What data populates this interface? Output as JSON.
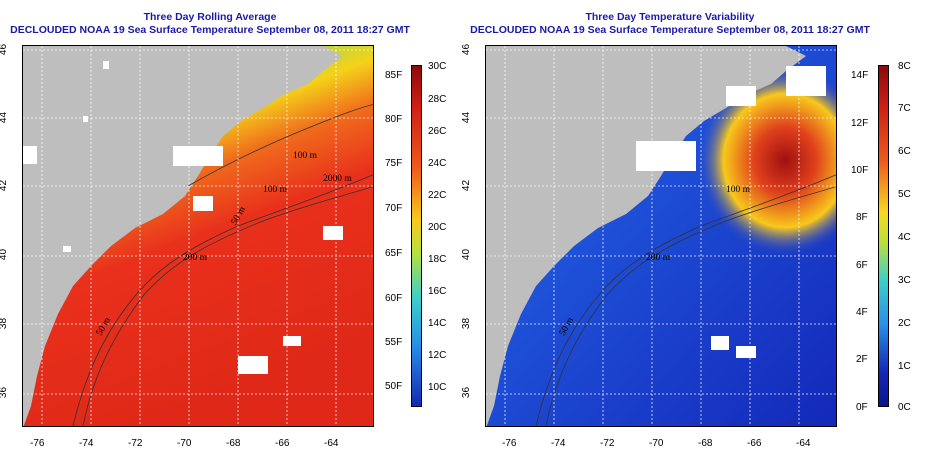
{
  "left_panel": {
    "title_line1": "Three Day Rolling Average",
    "title_line2": "DECLOUDED NOAA 19 Sea Surface Temperature September 08, 2011 18:27 GMT",
    "contour_labels": [
      "100 m",
      "100 m",
      "50 m",
      "2000 m",
      "200 m",
      "50 m"
    ],
    "colorbar_f_labels": [
      "85F",
      "80F",
      "75F",
      "70F",
      "65F",
      "60F",
      "55F",
      "50F"
    ],
    "colorbar_c_labels": [
      "30C",
      "28C",
      "26C",
      "24C",
      "22C",
      "20C",
      "18C",
      "16C",
      "14C",
      "12C",
      "10C"
    ],
    "colorbar_range_c": [
      9,
      30
    ]
  },
  "right_panel": {
    "title_line1": "Three Day Temperature Variability",
    "title_line2": "DECLOUDED NOAA 19 Sea Surface Temperature September 08, 2011 18:27 GMT",
    "contour_labels": [
      "100 m",
      "200 m",
      "50 m"
    ],
    "colorbar_f_labels": [
      "14F",
      "12F",
      "10F",
      "8F",
      "6F",
      "4F",
      "2F",
      "0F"
    ],
    "colorbar_c_labels": [
      "8C",
      "7C",
      "6C",
      "5C",
      "4C",
      "3C",
      "2C",
      "1C",
      "0C"
    ],
    "colorbar_range_c": [
      0,
      8
    ]
  },
  "axes": {
    "x_ticks": [
      "-76",
      "-74",
      "-72",
      "-70",
      "-68",
      "-66",
      "-64"
    ],
    "y_ticks": [
      "46",
      "44",
      "42",
      "40",
      "38",
      "36"
    ]
  },
  "colors": {
    "title": "#1a1aa6",
    "land": "#bebebe",
    "cloud": "#ffffff",
    "warm": "#e8301c",
    "cool": "#3fb8e0",
    "variability_low": "#1428c8"
  }
}
